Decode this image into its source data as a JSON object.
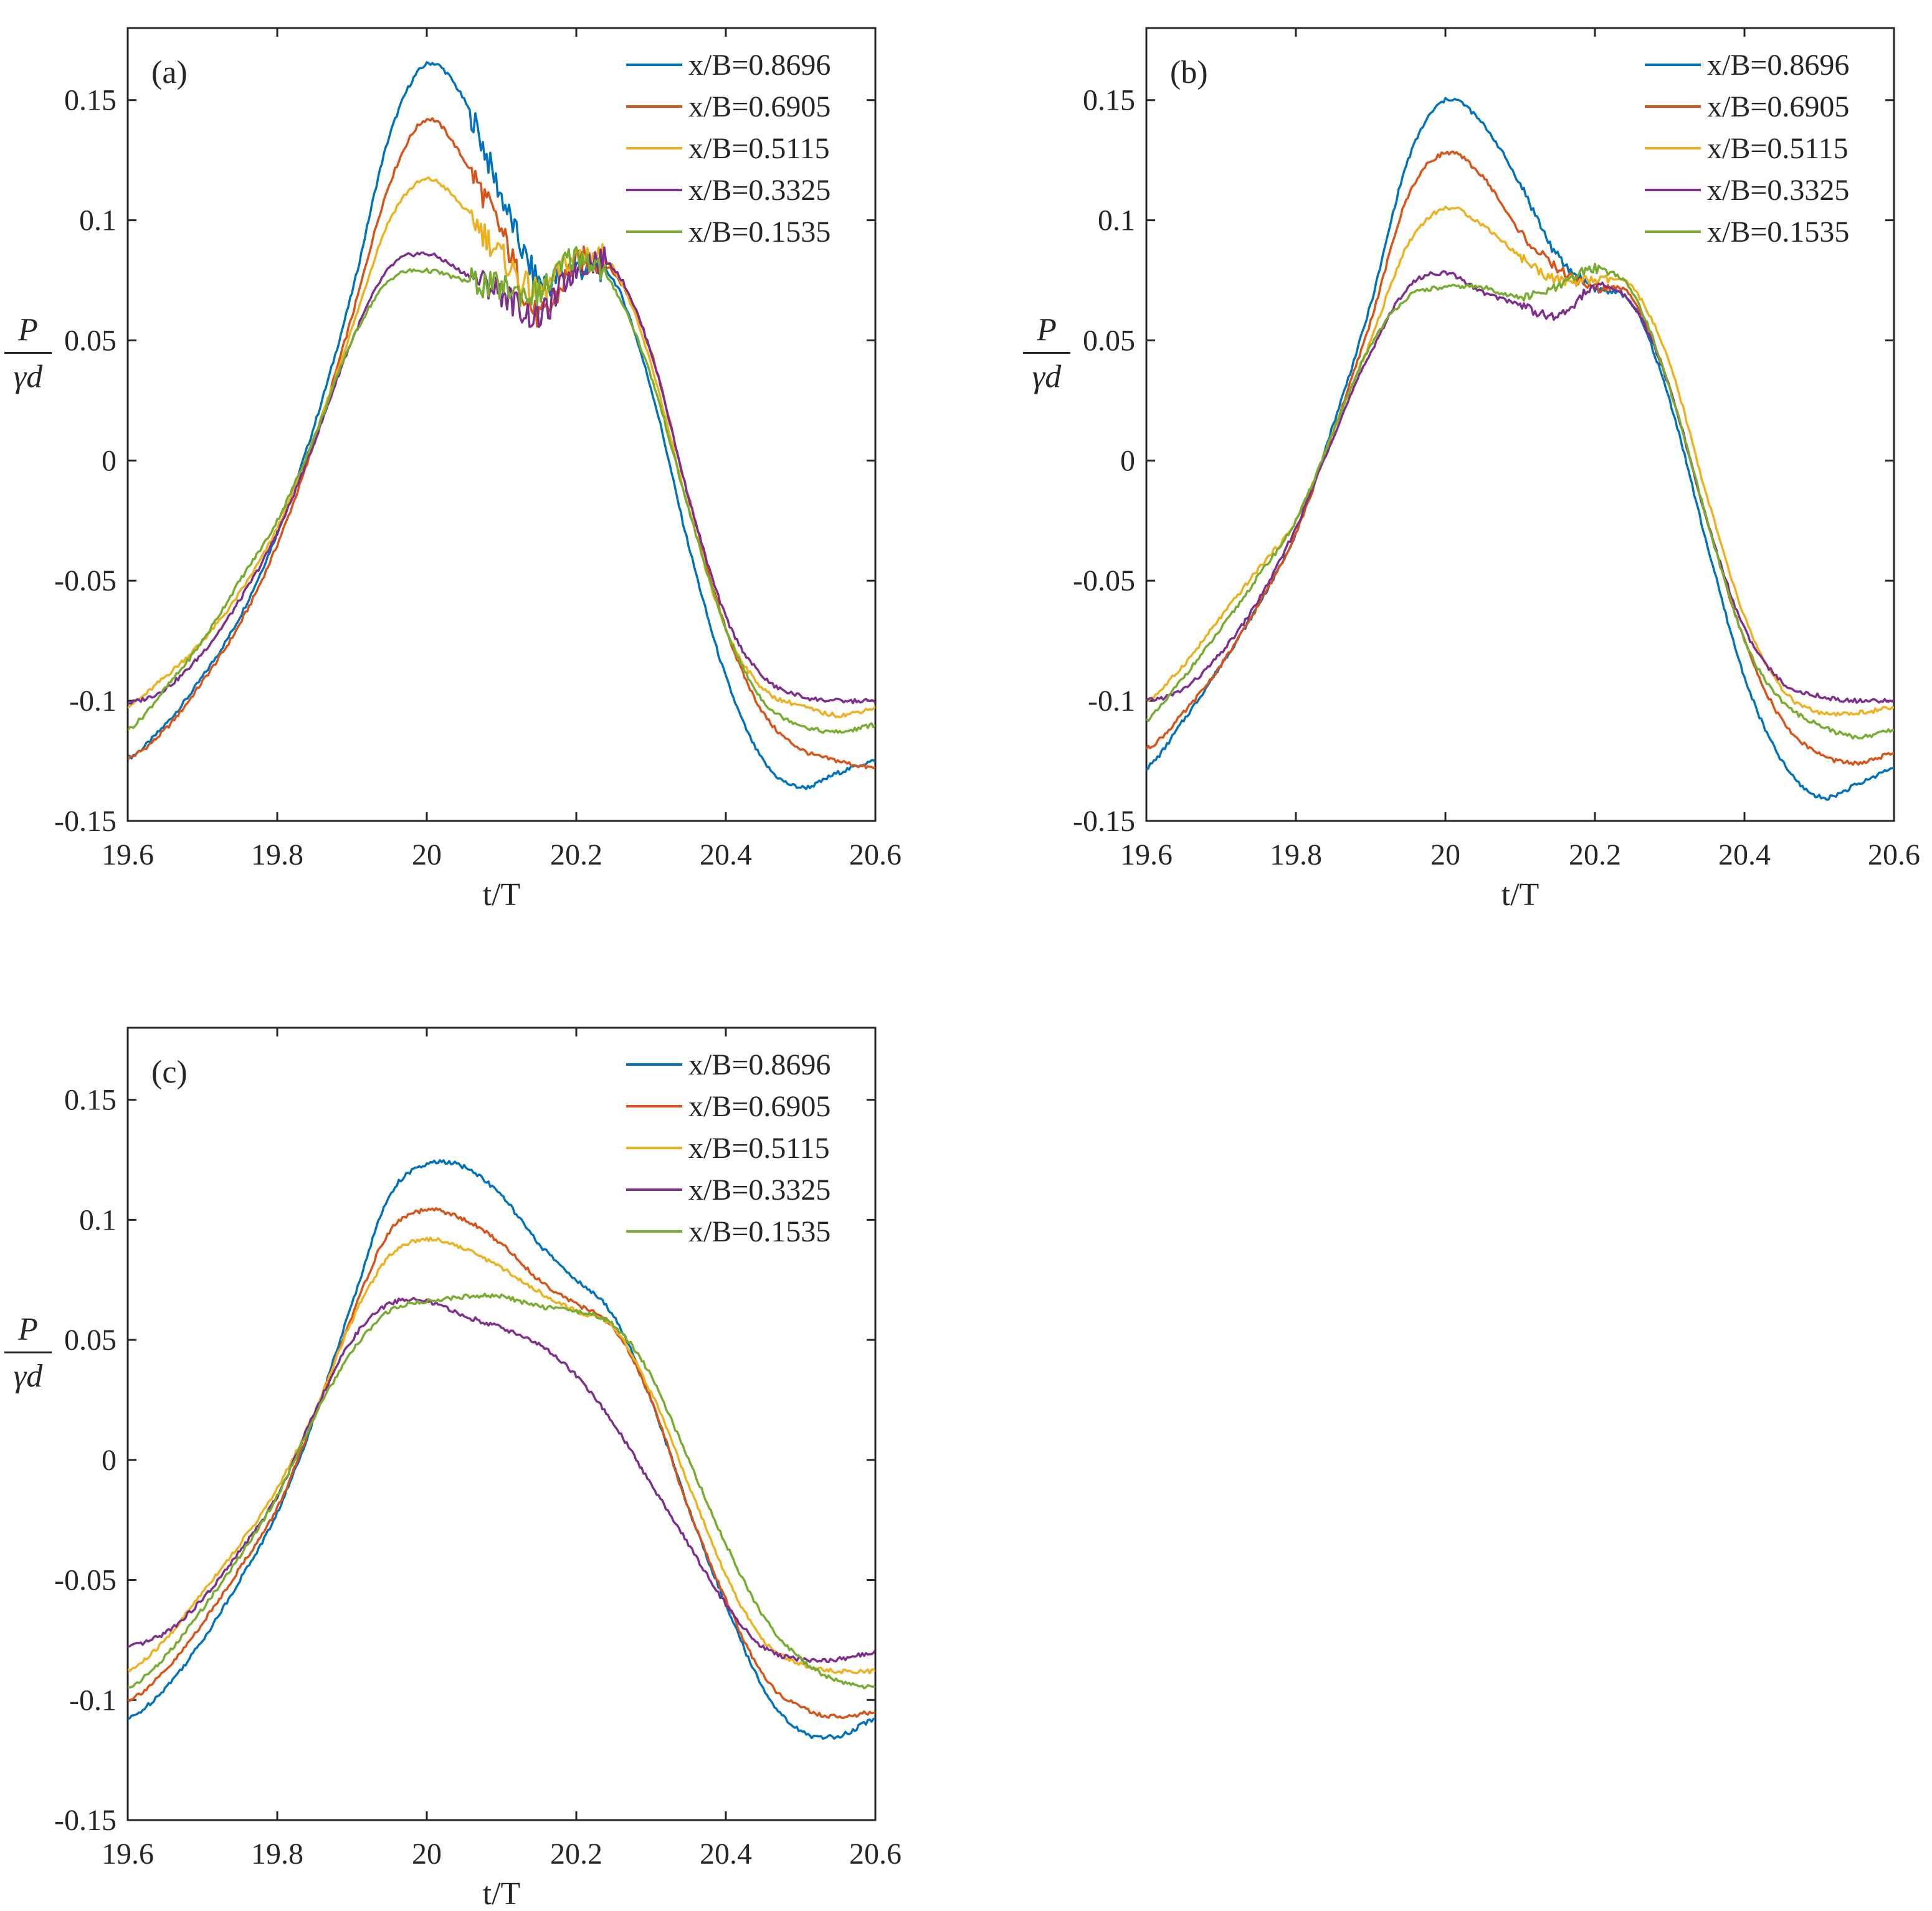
{
  "chart_data": [
    {
      "type": "line",
      "panel_label": "(a)",
      "xlabel": "t/T",
      "ylabel": {
        "numerator": "P",
        "denominator": "γd"
      },
      "xlim": [
        19.6,
        20.6
      ],
      "ylim": [
        -0.15,
        0.18
      ],
      "xticks": [
        "19.6",
        "19.8",
        "20",
        "20.2",
        "20.4",
        "20.6"
      ],
      "yticks": [
        "-0.15",
        "-0.1",
        "-0.05",
        "0",
        "0.05",
        "0.1",
        "0.15"
      ],
      "legend_position": "top-right",
      "x": [
        19.6,
        19.65,
        19.7,
        19.75,
        19.8,
        19.85,
        19.9,
        19.95,
        20.0,
        20.05,
        20.1,
        20.15,
        20.2,
        20.25,
        20.3,
        20.35,
        20.4,
        20.45,
        20.5,
        20.55,
        20.6
      ],
      "series": [
        {
          "name": "x/B=0.8696",
          "color": "#0072BD",
          "values": [
            -0.124,
            -0.11,
            -0.09,
            -0.065,
            -0.03,
            0.015,
            0.07,
            0.135,
            0.165,
            0.15,
            0.11,
            0.075,
            0.08,
            0.075,
            0.03,
            -0.035,
            -0.09,
            -0.125,
            -0.136,
            -0.13,
            -0.125
          ]
        },
        {
          "name": "x/B=0.6905",
          "color": "#D95319",
          "values": [
            -0.124,
            -0.112,
            -0.092,
            -0.068,
            -0.035,
            0.008,
            0.06,
            0.115,
            0.142,
            0.125,
            0.095,
            0.06,
            0.082,
            0.078,
            0.045,
            -0.015,
            -0.07,
            -0.105,
            -0.12,
            -0.125,
            -0.128
          ]
        },
        {
          "name": "x/B=0.5115",
          "color": "#EDB120",
          "values": [
            -0.102,
            -0.09,
            -0.075,
            -0.055,
            -0.028,
            0.01,
            0.055,
            0.1,
            0.117,
            0.105,
            0.085,
            0.07,
            0.085,
            0.08,
            0.04,
            -0.02,
            -0.07,
            -0.095,
            -0.102,
            -0.106,
            -0.103
          ]
        },
        {
          "name": "x/B=0.3325",
          "color": "#7E2F8E",
          "values": [
            -0.101,
            -0.095,
            -0.08,
            -0.058,
            -0.03,
            0.008,
            0.05,
            0.08,
            0.086,
            0.078,
            0.07,
            0.06,
            0.08,
            0.08,
            0.045,
            -0.015,
            -0.065,
            -0.09,
            -0.098,
            -0.1,
            -0.1
          ]
        },
        {
          "name": "x/B=0.1535",
          "color": "#77AC30",
          "values": [
            -0.112,
            -0.095,
            -0.075,
            -0.05,
            -0.025,
            0.01,
            0.05,
            0.075,
            0.079,
            0.075,
            0.072,
            0.07,
            0.085,
            0.072,
            0.035,
            -0.02,
            -0.07,
            -0.1,
            -0.11,
            -0.113,
            -0.11
          ]
        }
      ]
    },
    {
      "type": "line",
      "panel_label": "(b)",
      "xlabel": "t/T",
      "ylabel": {
        "numerator": "P",
        "denominator": "γd"
      },
      "xlim": [
        19.6,
        20.6
      ],
      "ylim": [
        -0.15,
        0.18
      ],
      "xticks": [
        "19.6",
        "19.8",
        "20",
        "20.2",
        "20.4",
        "20.6"
      ],
      "yticks": [
        "-0.15",
        "-0.1",
        "-0.05",
        "0",
        "0.05",
        "0.1",
        "0.15"
      ],
      "legend_position": "top-right",
      "x": [
        19.6,
        19.65,
        19.7,
        19.75,
        19.8,
        19.85,
        19.9,
        19.95,
        20.0,
        20.05,
        20.1,
        20.15,
        20.2,
        20.25,
        20.3,
        20.35,
        20.4,
        20.45,
        20.5,
        20.55,
        20.6
      ],
      "series": [
        {
          "name": "x/B=0.8696",
          "color": "#0072BD",
          "values": [
            -0.128,
            -0.108,
            -0.085,
            -0.06,
            -0.03,
            0.015,
            0.065,
            0.125,
            0.15,
            0.14,
            0.115,
            0.085,
            0.072,
            0.065,
            0.025,
            -0.035,
            -0.09,
            -0.125,
            -0.14,
            -0.135,
            -0.128
          ]
        },
        {
          "name": "x/B=0.6905",
          "color": "#D95319",
          "values": [
            -0.12,
            -0.105,
            -0.085,
            -0.06,
            -0.03,
            0.012,
            0.058,
            0.11,
            0.128,
            0.118,
            0.095,
            0.08,
            0.072,
            0.068,
            0.03,
            -0.025,
            -0.075,
            -0.108,
            -0.122,
            -0.126,
            -0.122
          ]
        },
        {
          "name": "x/B=0.5115",
          "color": "#EDB120",
          "values": [
            -0.1,
            -0.085,
            -0.065,
            -0.045,
            -0.025,
            0.012,
            0.05,
            0.09,
            0.105,
            0.098,
            0.085,
            0.075,
            0.075,
            0.072,
            0.04,
            -0.015,
            -0.065,
            -0.095,
            -0.105,
            -0.105,
            -0.103
          ]
        },
        {
          "name": "x/B=0.3325",
          "color": "#7E2F8E",
          "values": [
            -0.1,
            -0.095,
            -0.08,
            -0.058,
            -0.028,
            0.01,
            0.045,
            0.072,
            0.078,
            0.07,
            0.065,
            0.06,
            0.072,
            0.065,
            0.03,
            -0.025,
            -0.07,
            -0.092,
            -0.098,
            -0.1,
            -0.1
          ]
        },
        {
          "name": "x/B=0.1535",
          "color": "#77AC30",
          "values": [
            -0.108,
            -0.09,
            -0.07,
            -0.048,
            -0.025,
            0.012,
            0.048,
            0.068,
            0.072,
            0.072,
            0.068,
            0.072,
            0.08,
            0.07,
            0.03,
            -0.025,
            -0.075,
            -0.1,
            -0.11,
            -0.115,
            -0.112
          ]
        }
      ]
    },
    {
      "type": "line",
      "panel_label": "(c)",
      "xlabel": "t/T",
      "ylabel": {
        "numerator": "P",
        "denominator": "γd"
      },
      "xlim": [
        19.6,
        20.6
      ],
      "ylim": [
        -0.15,
        0.18
      ],
      "xticks": [
        "19.6",
        "19.8",
        "20",
        "20.2",
        "20.4",
        "20.6"
      ],
      "yticks": [
        "-0.15",
        "-0.1",
        "-0.05",
        "0",
        "0.05",
        "0.1",
        "0.15"
      ],
      "legend_position": "top-right",
      "x": [
        19.6,
        19.65,
        19.7,
        19.75,
        19.8,
        19.85,
        19.9,
        19.95,
        20.0,
        20.05,
        20.1,
        20.15,
        20.2,
        20.25,
        20.3,
        20.35,
        20.4,
        20.45,
        20.5,
        20.55,
        20.6
      ],
      "series": [
        {
          "name": "x/B=0.8696",
          "color": "#0072BD",
          "values": [
            -0.108,
            -0.095,
            -0.075,
            -0.05,
            -0.022,
            0.018,
            0.065,
            0.11,
            0.123,
            0.122,
            0.11,
            0.09,
            0.075,
            0.06,
            0.025,
            -0.02,
            -0.06,
            -0.095,
            -0.113,
            -0.115,
            -0.108
          ]
        },
        {
          "name": "x/B=0.6905",
          "color": "#D95319",
          "values": [
            -0.1,
            -0.088,
            -0.068,
            -0.045,
            -0.02,
            0.018,
            0.06,
            0.095,
            0.104,
            0.1,
            0.09,
            0.075,
            0.065,
            0.055,
            0.025,
            -0.02,
            -0.058,
            -0.09,
            -0.103,
            -0.107,
            -0.105
          ]
        },
        {
          "name": "x/B=0.5115",
          "color": "#EDB120",
          "values": [
            -0.088,
            -0.075,
            -0.055,
            -0.035,
            -0.012,
            0.02,
            0.058,
            0.085,
            0.092,
            0.088,
            0.08,
            0.07,
            0.062,
            0.055,
            0.028,
            -0.01,
            -0.048,
            -0.075,
            -0.085,
            -0.088,
            -0.088
          ]
        },
        {
          "name": "x/B=0.3325",
          "color": "#7E2F8E",
          "values": [
            -0.078,
            -0.072,
            -0.058,
            -0.038,
            -0.015,
            0.02,
            0.05,
            0.065,
            0.066,
            0.06,
            0.055,
            0.048,
            0.035,
            0.015,
            -0.01,
            -0.035,
            -0.06,
            -0.078,
            -0.083,
            -0.083,
            -0.08
          ]
        },
        {
          "name": "x/B=0.1535",
          "color": "#77AC30",
          "values": [
            -0.095,
            -0.082,
            -0.062,
            -0.04,
            -0.015,
            0.018,
            0.045,
            0.062,
            0.066,
            0.068,
            0.068,
            0.064,
            0.062,
            0.056,
            0.035,
            0.0,
            -0.035,
            -0.065,
            -0.083,
            -0.092,
            -0.095
          ]
        }
      ]
    }
  ]
}
